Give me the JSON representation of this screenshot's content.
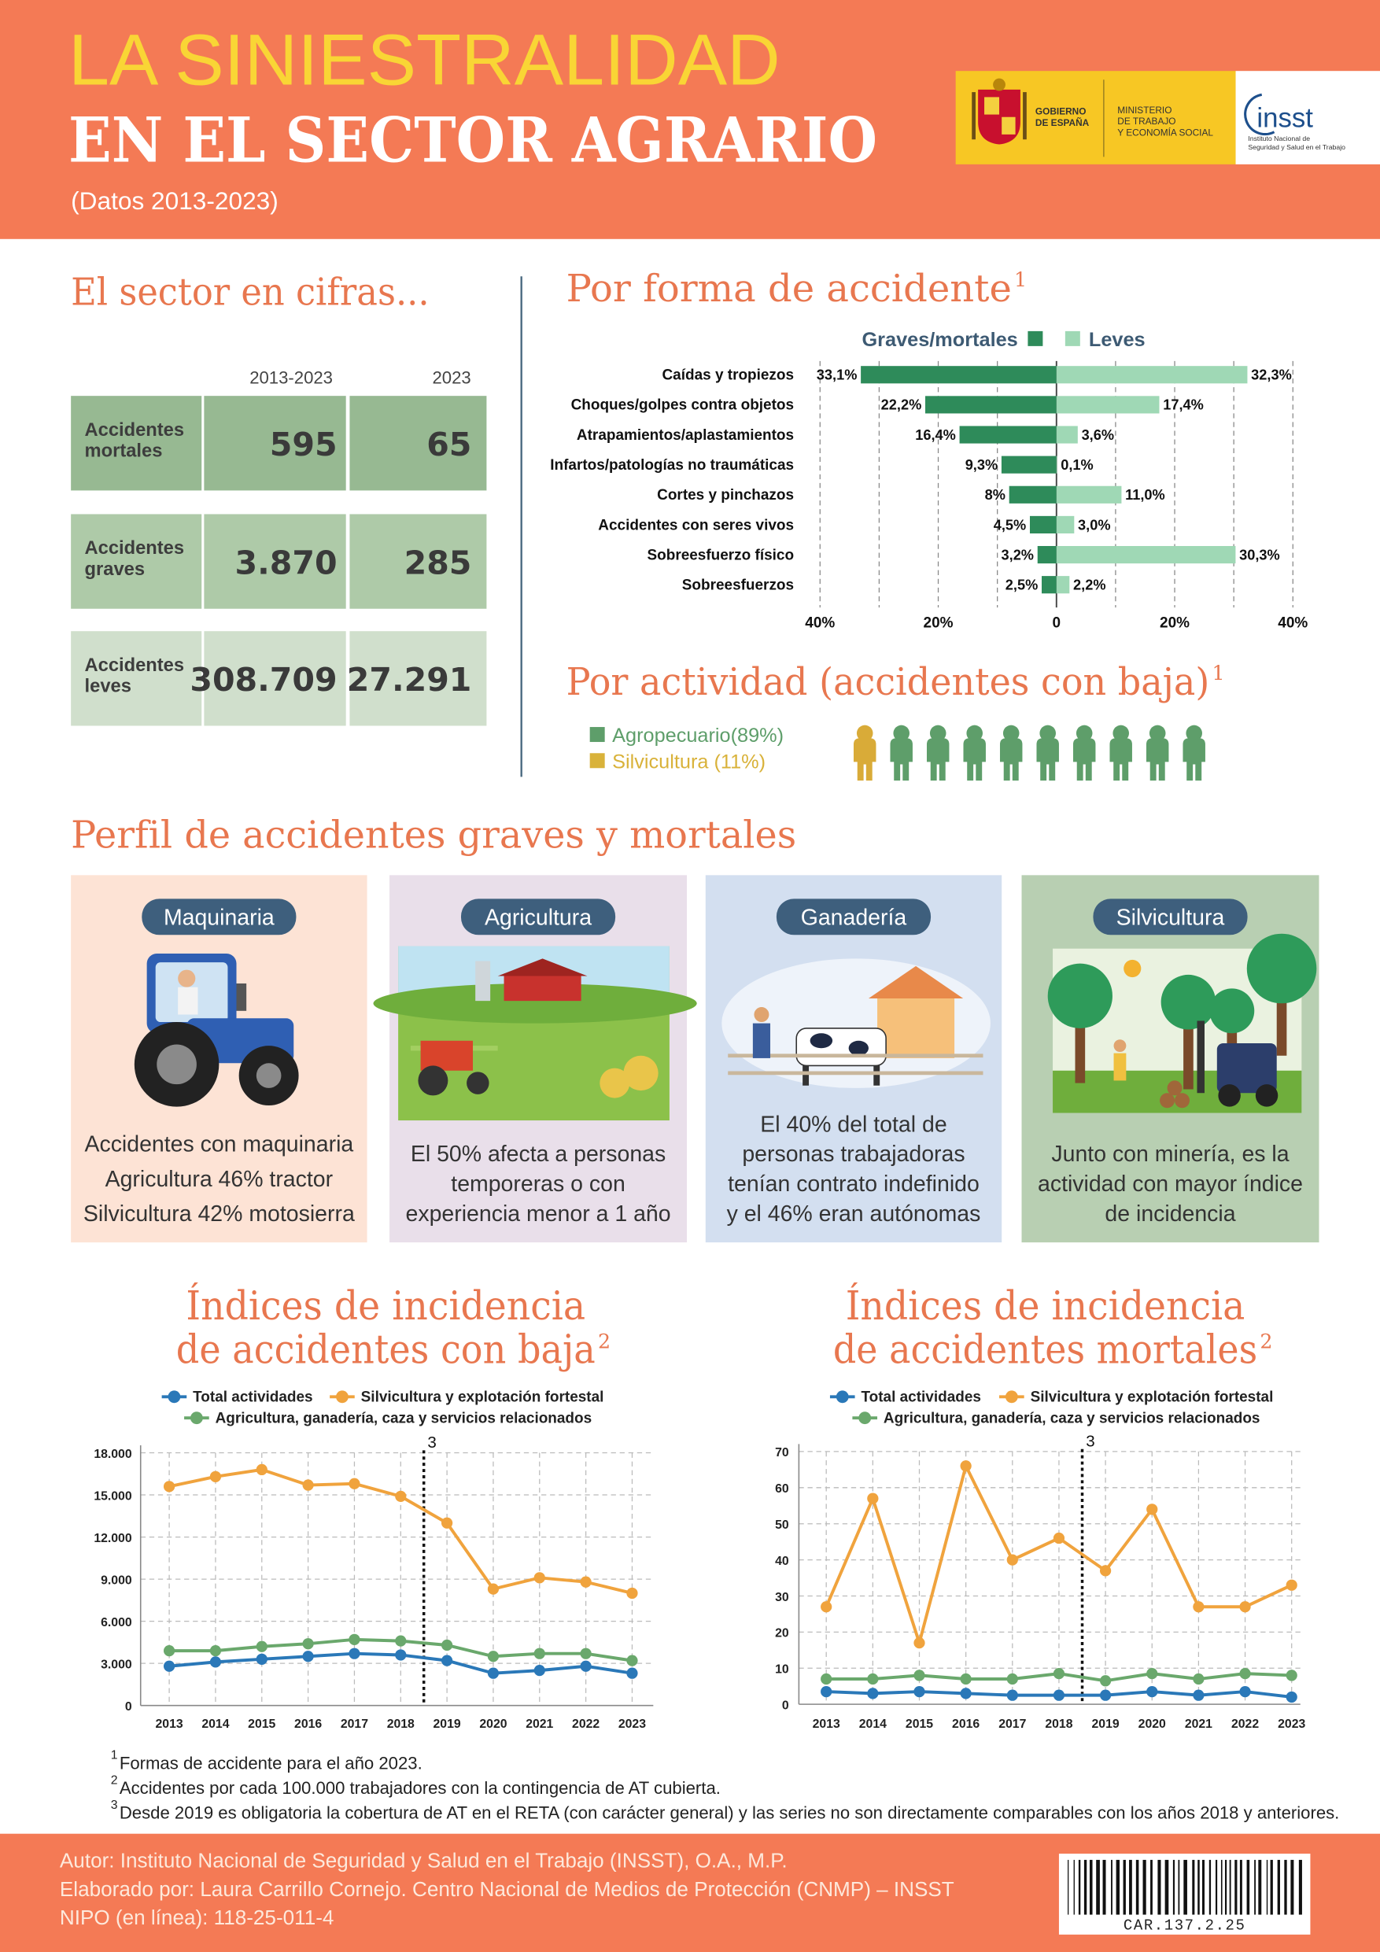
{
  "header": {
    "title": "LA SINIESTRALIDAD",
    "subtitle": "EN EL SECTOR AGRARIO",
    "period": "(Datos 2013-2023)",
    "logos": {
      "gobierno": [
        "GOBIERNO",
        "DE ESPAÑA"
      ],
      "ministerio": [
        "MINISTERIO",
        "DE TRABAJO",
        "Y ECONOMÍA SOCIAL"
      ],
      "insst": "insst",
      "insst_full": [
        "Instituto Nacional de",
        "Seguridad y Salud en el Trabajo"
      ]
    }
  },
  "cifras": {
    "title": "El sector en cifras...",
    "columns": [
      "2013-2023",
      "2023"
    ],
    "rows": [
      {
        "label": [
          "Accidentes",
          "mortales"
        ],
        "values": [
          "595",
          "65"
        ]
      },
      {
        "label": [
          "Accidentes",
          "graves"
        ],
        "values": [
          "3.870",
          "285"
        ]
      },
      {
        "label": [
          "Accidentes",
          "leves"
        ],
        "values": [
          "308.709",
          "27.291"
        ]
      }
    ]
  },
  "actividad": {
    "title": "Por actividad (accidentes con baja)",
    "title_note": "1",
    "legend": [
      "Agropecuario(89%)",
      "Silvicultura (11%)"
    ]
  },
  "perfil": {
    "title": "Perfil de accidentes graves y mortales",
    "cards": [
      {
        "label": "Maquinaria",
        "text": [
          "Accidentes con maquinaria",
          "Agricultura 46% tractor",
          "Silvicultura 42% motosierra"
        ]
      },
      {
        "label": "Agricultura",
        "text": [
          "El 50% afecta a personas",
          "temporeras o con",
          "experiencia menor a 1 año"
        ]
      },
      {
        "label": "Ganadería",
        "text": [
          "El 40% del total de",
          "personas trabajadoras",
          "tenían contrato indefinido",
          "y el 46% eran autónomas"
        ]
      },
      {
        "label": "Silvicultura",
        "text": [
          "Junto con minería, es la",
          "actividad con mayor índice",
          "de incidencia"
        ]
      }
    ]
  },
  "chart_data": [
    {
      "type": "bar",
      "orientation": "horizontal",
      "diverging": true,
      "title": "Por forma de accidente",
      "title_note": "1",
      "categories": [
        "Caídas y tropiezos",
        "Choques/golpes contra objetos",
        "Atrapamientos/aplastamientos",
        "Infartos/patologías no traumáticas",
        "Cortes y pinchazos",
        "Accidentes con seres vivos",
        "Sobreesfuerzo físico",
        "Sobreesfuerzos"
      ],
      "series": [
        {
          "name": "Graves/mortales",
          "color": "#2e8b5a",
          "values": [
            33.1,
            22.2,
            16.4,
            9.3,
            8,
            4.5,
            3.2,
            2.5
          ],
          "value_labels": [
            "33,1%",
            "22,2%",
            "16,4%",
            "9,3%",
            "8%",
            "4,5%",
            "3,2%",
            "2,5%"
          ]
        },
        {
          "name": "Leves",
          "color": "#9fd8b5",
          "values": [
            32.3,
            17.4,
            3.6,
            0.1,
            11.0,
            3.0,
            30.3,
            2.2
          ],
          "value_labels": [
            "32,3%",
            "17,4%",
            "3,6%",
            "0,1%",
            "11,0%",
            "3,0%",
            "30,3%",
            "2,2%"
          ]
        }
      ],
      "xlim": [
        -40,
        40
      ],
      "xticks": [
        {
          "value": -40,
          "label": "40%"
        },
        {
          "value": -20,
          "label": "20%"
        },
        0,
        {
          "value": 20,
          "label": "20%"
        },
        {
          "value": 40,
          "label": "40%"
        }
      ],
      "minor_xticks": [
        -30,
        -10,
        10,
        30
      ],
      "grid": true
    },
    {
      "type": "line",
      "title": [
        "Índices de incidencia",
        "de accidentes con baja"
      ],
      "title_note": "2",
      "x": [
        2013,
        2014,
        2015,
        2016,
        2017,
        2018,
        2019,
        2020,
        2021,
        2022,
        2023
      ],
      "series": [
        {
          "name": "Total actividades",
          "color": "#2a78b8",
          "values": [
            2800,
            3100,
            3300,
            3500,
            3700,
            3600,
            3200,
            2300,
            2500,
            2800,
            2300
          ]
        },
        {
          "name": "Silvicultura y explotación fortestal",
          "color": "#f0a33d",
          "values": [
            15600,
            16300,
            16800,
            15700,
            15800,
            14900,
            13000,
            8300,
            9100,
            8800,
            8000
          ]
        },
        {
          "name": "Agricultura, ganadería, caza y servicios relacionados",
          "color": "#6aa86c",
          "values": [
            3900,
            3900,
            4200,
            4400,
            4700,
            4600,
            4300,
            3500,
            3700,
            3700,
            3200
          ]
        }
      ],
      "ylim": [
        0,
        18000
      ],
      "yticks": [
        0,
        {
          "value": 3000,
          "label": "3.000"
        },
        {
          "value": 6000,
          "label": "6.000"
        },
        {
          "value": 9000,
          "label": "9.000"
        },
        {
          "value": 12000,
          "label": "12.000"
        },
        {
          "value": 15000,
          "label": "15.000"
        },
        {
          "value": 18000,
          "label": "18.000"
        }
      ],
      "grid": true,
      "annotation": {
        "x": 2018.5,
        "text": "3"
      }
    },
    {
      "type": "line",
      "title": [
        "Índices de incidencia",
        "de accidentes mortales"
      ],
      "title_note": "2",
      "x": [
        2013,
        2014,
        2015,
        2016,
        2017,
        2018,
        2019,
        2020,
        2021,
        2022,
        2023
      ],
      "series": [
        {
          "name": "Total actividades",
          "color": "#2a78b8",
          "values": [
            3.5,
            3,
            3.5,
            3,
            2.5,
            2.5,
            2.5,
            3.5,
            2.5,
            3.5,
            2
          ]
        },
        {
          "name": "Silvicultura y explotación fortestal",
          "color": "#f0a33d",
          "values": [
            27,
            57,
            17,
            66,
            40,
            46,
            37,
            54,
            27,
            27,
            33
          ]
        },
        {
          "name": "Agricultura, ganadería, caza y servicios relacionados",
          "color": "#6aa86c",
          "values": [
            7,
            7,
            8,
            7,
            7,
            8.5,
            6.5,
            8.5,
            7,
            8.5,
            8
          ]
        }
      ],
      "ylim": [
        0,
        70
      ],
      "yticks": [
        0,
        10,
        20,
        30,
        40,
        50,
        60,
        70
      ],
      "grid": true,
      "annotation": {
        "x": 2018.5,
        "text": "3"
      }
    }
  ],
  "footnotes": [
    {
      "mark": "1",
      "text": "Formas de accidente para el año 2023."
    },
    {
      "mark": "2",
      "text": "Accidentes por cada 100.000 trabajadores con la contingencia de AT cubierta."
    },
    {
      "mark": "3",
      "text": "Desde 2019 es obligatoria la cobertura de AT en el RETA (con carácter general) y las series no son directamente comparables con los años 2018 y anteriores."
    }
  ],
  "footer": {
    "lines": [
      "Autor: Instituto Nacional de Seguridad y Salud en el Trabajo (INSST), O.A., M.P.",
      "Elaborado por: Laura Carrillo Cornejo. Centro Nacional de Medios de Protección (CNMP) – INSST",
      "NIPO (en línea): 118-25-011-4"
    ],
    "code": "CAR.137.2.25"
  }
}
